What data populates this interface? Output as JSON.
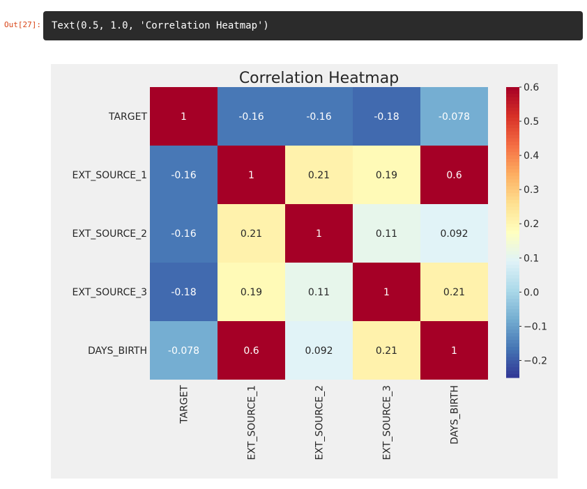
{
  "output": {
    "prompt": "Out[27]:",
    "text": "Text(0.5, 1.0, 'Correlation Heatmap')"
  },
  "chart_data": {
    "type": "heatmap",
    "title": "Correlation Heatmap",
    "rows": [
      "TARGET",
      "EXT_SOURCE_1",
      "EXT_SOURCE_2",
      "EXT_SOURCE_3",
      "DAYS_BIRTH"
    ],
    "columns": [
      "TARGET",
      "EXT_SOURCE_1",
      "EXT_SOURCE_2",
      "EXT_SOURCE_3",
      "DAYS_BIRTH"
    ],
    "values": [
      [
        1,
        -0.16,
        -0.16,
        -0.18,
        -0.078
      ],
      [
        -0.16,
        1,
        0.21,
        0.19,
        0.6
      ],
      [
        -0.16,
        0.21,
        1,
        0.11,
        0.092
      ],
      [
        -0.18,
        0.19,
        0.11,
        1,
        0.21
      ],
      [
        -0.078,
        0.6,
        0.092,
        0.21,
        1
      ]
    ],
    "cell_labels": [
      [
        "1",
        "-0.16",
        "-0.16",
        "-0.18",
        "-0.078"
      ],
      [
        "-0.16",
        "1",
        "0.21",
        "0.19",
        "0.6"
      ],
      [
        "-0.16",
        "0.21",
        "1",
        "0.11",
        "0.092"
      ],
      [
        "-0.18",
        "0.19",
        "0.11",
        "1",
        "0.21"
      ],
      [
        "-0.078",
        "0.6",
        "0.092",
        "0.21",
        "1"
      ]
    ],
    "colormap": "RdYlBu_r",
    "vmin": -0.25,
    "vmax": 0.6,
    "colorbar_ticks": [
      0.6,
      0.5,
      0.4,
      0.3,
      0.2,
      0.1,
      0.0,
      -0.1,
      -0.2
    ],
    "colorbar_tick_labels": [
      "0.6",
      "0.5",
      "0.4",
      "0.3",
      "0.2",
      "0.1",
      "0.0",
      "−0.1",
      "−0.2"
    ],
    "colors": {
      "figure_background": "#f0f0f0",
      "annotation_text": "#ffffff",
      "annotation_text_light_cell": "#262626"
    }
  }
}
